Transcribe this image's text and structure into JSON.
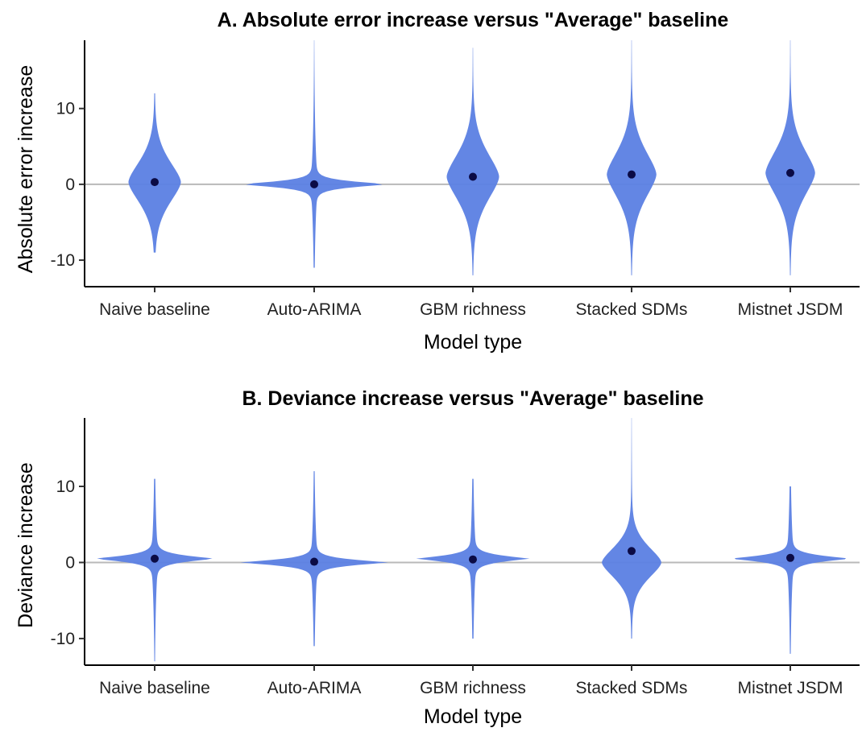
{
  "chart_data": [
    {
      "type": "violin",
      "title": "A. Absolute error increase versus \"Average\" baseline",
      "xlabel": "Model type",
      "ylabel": "Absolute error increase",
      "ylim": [
        -13.5,
        19
      ],
      "yticks": [
        -10,
        0,
        10
      ],
      "reference_line": 0,
      "grid": false,
      "fill_color": "#5b7fe3",
      "point_color": "#0b0b45",
      "categories": [
        "Naive baseline",
        "Auto-ARIMA",
        "GBM richness",
        "Stacked SDMs",
        "Mistnet JSDM"
      ],
      "means": [
        0.3,
        0.0,
        1.0,
        1.3,
        1.5
      ],
      "violins": [
        {
          "center": 0.3,
          "top": 12,
          "bottom": -9,
          "core_halfwidth": 0.35,
          "spread": 4.0,
          "tail": "normal"
        },
        {
          "center": 0.0,
          "top": 19,
          "bottom": -11,
          "core_halfwidth": 1.0,
          "spread": 1.5,
          "tail": "spike"
        },
        {
          "center": 1.0,
          "top": 18,
          "bottom": -12,
          "core_halfwidth": 0.35,
          "spread": 4.5,
          "tail": "normal"
        },
        {
          "center": 1.3,
          "top": 19,
          "bottom": -12,
          "core_halfwidth": 0.33,
          "spread": 4.5,
          "tail": "normal"
        },
        {
          "center": 1.5,
          "top": 19,
          "bottom": -12,
          "core_halfwidth": 0.33,
          "spread": 4.5,
          "tail": "normal"
        }
      ]
    },
    {
      "type": "violin",
      "title": "B. Deviance increase versus \"Average\" baseline",
      "xlabel": "Model type",
      "ylabel": "Deviance increase",
      "ylim": [
        -13.5,
        19
      ],
      "yticks": [
        -10,
        0,
        10
      ],
      "reference_line": 0,
      "grid": false,
      "fill_color": "#5b7fe3",
      "point_color": "#0b0b45",
      "categories": [
        "Naive baseline",
        "Auto-ARIMA",
        "GBM richness",
        "Stacked SDMs",
        "Mistnet JSDM"
      ],
      "means": [
        0.5,
        0.1,
        0.4,
        1.5,
        0.6
      ],
      "violins": [
        {
          "center": 0.5,
          "top": 11,
          "bottom": -13,
          "core_halfwidth": 0.8,
          "spread": 1.6,
          "tail": "spike"
        },
        {
          "center": 0.0,
          "top": 12,
          "bottom": -11,
          "core_halfwidth": 1.0,
          "spread": 1.5,
          "tail": "spike"
        },
        {
          "center": 0.5,
          "top": 11,
          "bottom": -10,
          "core_halfwidth": 0.75,
          "spread": 1.6,
          "tail": "spike"
        },
        {
          "center": 0.0,
          "top": 19,
          "bottom": -10,
          "core_halfwidth": 0.4,
          "spread": 3.0,
          "tail": "normal"
        },
        {
          "center": 0.5,
          "top": 10,
          "bottom": -12,
          "core_halfwidth": 0.8,
          "spread": 1.6,
          "tail": "spike"
        }
      ]
    }
  ]
}
